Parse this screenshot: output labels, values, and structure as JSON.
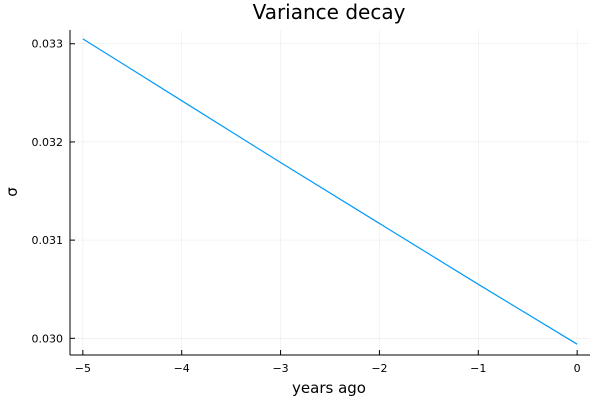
{
  "chart_data": {
    "type": "line",
    "title": "Variance decay",
    "xlabel": "years ago",
    "ylabel": "σ",
    "xlim": [
      -5.13,
      0.13
    ],
    "ylim": [
      0.02983,
      0.03314
    ],
    "xticks": [
      -5,
      -4,
      -3,
      -2,
      -1,
      0
    ],
    "xtick_labels": [
      "−5",
      "−4",
      "−3",
      "−2",
      "−1",
      "0"
    ],
    "yticks": [
      0.03,
      0.031,
      0.032,
      0.033
    ],
    "ytick_labels": [
      "0.030",
      "0.031",
      "0.032",
      "0.033"
    ],
    "grid": true,
    "legend": "none",
    "series": [
      {
        "color": "#009AFA",
        "x": [
          -5,
          -4,
          -3,
          -2,
          -1,
          0
        ],
        "y": [
          0.03305,
          0.03242,
          0.03179,
          0.03117,
          0.03055,
          0.02994
        ]
      }
    ]
  }
}
